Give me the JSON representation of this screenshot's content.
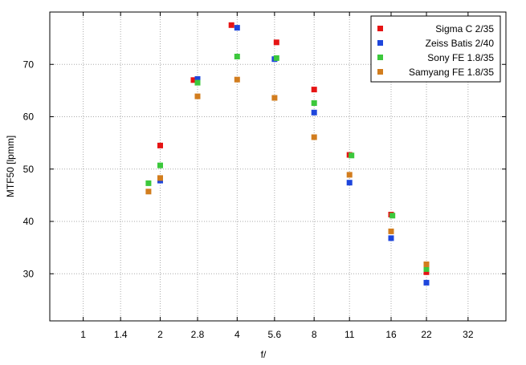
{
  "colors": {
    "sigma": "#e61414",
    "zeiss": "#1e46dc",
    "sony": "#3cc83c",
    "samyang": "#d27d1e",
    "grid": "#aaaaaa",
    "frame": "#000000"
  },
  "chart_data": {
    "type": "scatter",
    "xlabel": "f/",
    "ylabel": "MTF50 [lpmm]",
    "x_scale": "log2",
    "x_ticks": [
      "1",
      "1.4",
      "2",
      "2.8",
      "4",
      "5.6",
      "8",
      "11",
      "16",
      "22",
      "32"
    ],
    "xlim": [
      0.74,
      45.0
    ],
    "ylim": [
      21,
      80
    ],
    "y_ticks": [
      30,
      40,
      50,
      60,
      70
    ],
    "grid": true,
    "legend_position": "top-right",
    "series": [
      {
        "name": "Sigma C 2/35",
        "color_key": "sigma",
        "points": [
          {
            "x": 2.0,
            "y": 54.5
          },
          {
            "x": 2.7,
            "y": 67.0
          },
          {
            "x": 3.8,
            "y": 77.5
          },
          {
            "x": 5.7,
            "y": 74.2
          },
          {
            "x": 8.0,
            "y": 65.2
          },
          {
            "x": 11.0,
            "y": 52.7
          },
          {
            "x": 16.0,
            "y": 41.3
          },
          {
            "x": 22.0,
            "y": 30.3
          }
        ]
      },
      {
        "name": "Zeiss Batis 2/40",
        "color_key": "zeiss",
        "points": [
          {
            "x": 2.0,
            "y": 47.8
          },
          {
            "x": 2.8,
            "y": 67.2
          },
          {
            "x": 4.0,
            "y": 77.0
          },
          {
            "x": 5.6,
            "y": 71.0
          },
          {
            "x": 8.0,
            "y": 60.8
          },
          {
            "x": 11.0,
            "y": 47.4
          },
          {
            "x": 16.0,
            "y": 36.8
          },
          {
            "x": 22.0,
            "y": 28.3
          }
        ]
      },
      {
        "name": "Sony FE 1.8/35",
        "color_key": "sony",
        "points": [
          {
            "x": 1.8,
            "y": 47.3
          },
          {
            "x": 2.0,
            "y": 50.7
          },
          {
            "x": 2.8,
            "y": 66.5
          },
          {
            "x": 4.0,
            "y": 71.5
          },
          {
            "x": 5.7,
            "y": 71.2
          },
          {
            "x": 8.0,
            "y": 62.6
          },
          {
            "x": 11.2,
            "y": 52.6
          },
          {
            "x": 16.2,
            "y": 41.1
          },
          {
            "x": 22.0,
            "y": 30.9
          }
        ]
      },
      {
        "name": "Samyang FE 1.8/35",
        "color_key": "samyang",
        "points": [
          {
            "x": 1.8,
            "y": 45.7
          },
          {
            "x": 2.0,
            "y": 48.3
          },
          {
            "x": 2.8,
            "y": 63.9
          },
          {
            "x": 4.0,
            "y": 67.1
          },
          {
            "x": 5.6,
            "y": 63.6
          },
          {
            "x": 8.0,
            "y": 56.1
          },
          {
            "x": 11.0,
            "y": 48.9
          },
          {
            "x": 16.0,
            "y": 38.1
          },
          {
            "x": 22.0,
            "y": 31.8
          }
        ]
      }
    ]
  }
}
